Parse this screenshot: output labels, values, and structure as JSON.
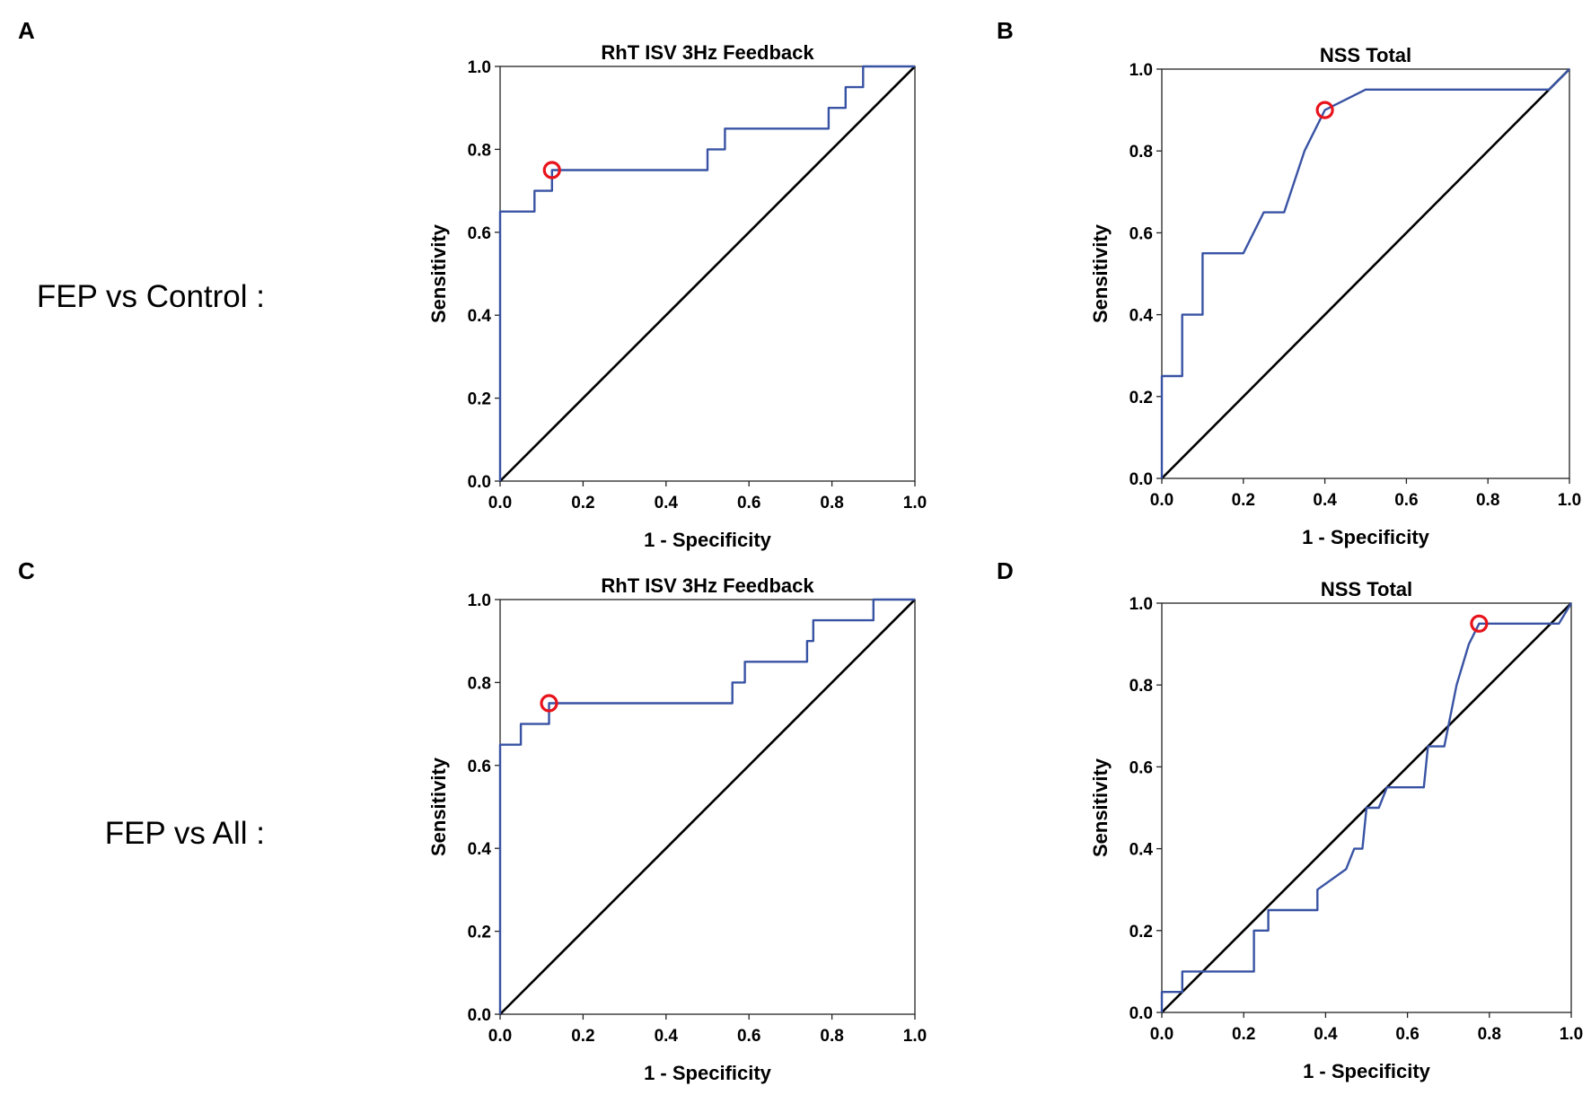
{
  "row_labels": [
    "FEP vs Control :",
    "FEP vs All :"
  ],
  "panel_letters": [
    "A",
    "B",
    "C",
    "D"
  ],
  "colors": {
    "roc": "#3953a4",
    "reference": "#000000",
    "cutoff": "#e8131b"
  },
  "chart_data": [
    {
      "type": "line",
      "panel": "A",
      "title": "RhT ISV 3Hz Feedback",
      "xlabel": "1 - Specificity",
      "ylabel": "Sensitivity",
      "xlim": [
        0,
        1
      ],
      "ylim": [
        0,
        1
      ],
      "xticks": [
        "0.0",
        "0.2",
        "0.4",
        "0.6",
        "0.8",
        "1.0"
      ],
      "yticks": [
        "0.0",
        "0.2",
        "0.4",
        "0.6",
        "0.8",
        "1.0"
      ],
      "series": [
        {
          "name": "ROC curve",
          "points": [
            [
              0,
              0
            ],
            [
              0,
              0.65
            ],
            [
              0.083,
              0.65
            ],
            [
              0.083,
              0.7
            ],
            [
              0.125,
              0.7
            ],
            [
              0.125,
              0.75
            ],
            [
              0.5,
              0.75
            ],
            [
              0.5,
              0.8
            ],
            [
              0.542,
              0.8
            ],
            [
              0.542,
              0.85
            ],
            [
              0.792,
              0.85
            ],
            [
              0.792,
              0.9
            ],
            [
              0.833,
              0.9
            ],
            [
              0.833,
              0.95
            ],
            [
              0.875,
              0.95
            ],
            [
              0.875,
              1.0
            ],
            [
              1.0,
              1.0
            ]
          ]
        },
        {
          "name": "Reference line",
          "points": [
            [
              0,
              0
            ],
            [
              1,
              1
            ]
          ]
        }
      ],
      "cutoff": [
        0.125,
        0.75
      ]
    },
    {
      "type": "line",
      "panel": "B",
      "title": "NSS Total",
      "xlabel": "1 - Specificity",
      "ylabel": "Sensitivity",
      "xlim": [
        0,
        1
      ],
      "ylim": [
        0,
        1
      ],
      "xticks": [
        "0.0",
        "0.2",
        "0.4",
        "0.6",
        "0.8",
        "1.0"
      ],
      "yticks": [
        "0.0",
        "0.2",
        "0.4",
        "0.6",
        "0.8",
        "1.0"
      ],
      "series": [
        {
          "name": "ROC curve",
          "points": [
            [
              0,
              0
            ],
            [
              0,
              0.25
            ],
            [
              0.05,
              0.25
            ],
            [
              0.05,
              0.4
            ],
            [
              0.1,
              0.4
            ],
            [
              0.1,
              0.55
            ],
            [
              0.2,
              0.55
            ],
            [
              0.25,
              0.65
            ],
            [
              0.3,
              0.65
            ],
            [
              0.35,
              0.8
            ],
            [
              0.4,
              0.9
            ],
            [
              0.5,
              0.95
            ],
            [
              0.95,
              0.95
            ],
            [
              1.0,
              1.0
            ]
          ]
        },
        {
          "name": "Reference line",
          "points": [
            [
              0,
              0
            ],
            [
              1,
              1
            ]
          ]
        }
      ],
      "cutoff": [
        0.4,
        0.9
      ]
    },
    {
      "type": "line",
      "panel": "C",
      "title": "RhT ISV 3Hz Feedback",
      "xlabel": "1 - Specificity",
      "ylabel": "Sensitivity",
      "xlim": [
        0,
        1
      ],
      "ylim": [
        0,
        1
      ],
      "xticks": [
        "0.0",
        "0.2",
        "0.4",
        "0.6",
        "0.8",
        "1.0"
      ],
      "yticks": [
        "0.0",
        "0.2",
        "0.4",
        "0.6",
        "0.8",
        "1.0"
      ],
      "series": [
        {
          "name": "ROC curve",
          "points": [
            [
              0,
              0
            ],
            [
              0,
              0.65
            ],
            [
              0.05,
              0.65
            ],
            [
              0.05,
              0.7
            ],
            [
              0.118,
              0.7
            ],
            [
              0.118,
              0.75
            ],
            [
              0.56,
              0.75
            ],
            [
              0.56,
              0.8
            ],
            [
              0.59,
              0.8
            ],
            [
              0.59,
              0.85
            ],
            [
              0.74,
              0.85
            ],
            [
              0.74,
              0.9
            ],
            [
              0.755,
              0.9
            ],
            [
              0.755,
              0.95
            ],
            [
              0.9,
              0.95
            ],
            [
              0.9,
              1.0
            ],
            [
              1.0,
              1.0
            ]
          ]
        },
        {
          "name": "Reference line",
          "points": [
            [
              0,
              0
            ],
            [
              1,
              1
            ]
          ]
        }
      ],
      "cutoff": [
        0.118,
        0.75
      ]
    },
    {
      "type": "line",
      "panel": "D",
      "title": "NSS Total",
      "xlabel": "1 - Specificity",
      "ylabel": "Sensitivity",
      "xlim": [
        0,
        1
      ],
      "ylim": [
        0,
        1
      ],
      "xticks": [
        "0.0",
        "0.2",
        "0.4",
        "0.6",
        "0.8",
        "1.0"
      ],
      "yticks": [
        "0.0",
        "0.2",
        "0.4",
        "0.6",
        "0.8",
        "1.0"
      ],
      "series": [
        {
          "name": "ROC curve",
          "points": [
            [
              0,
              0
            ],
            [
              0,
              0.05
            ],
            [
              0.05,
              0.05
            ],
            [
              0.05,
              0.1
            ],
            [
              0.225,
              0.1
            ],
            [
              0.225,
              0.2
            ],
            [
              0.26,
              0.2
            ],
            [
              0.26,
              0.25
            ],
            [
              0.38,
              0.25
            ],
            [
              0.38,
              0.3
            ],
            [
              0.45,
              0.35
            ],
            [
              0.47,
              0.4
            ],
            [
              0.49,
              0.4
            ],
            [
              0.5,
              0.5
            ],
            [
              0.53,
              0.5
            ],
            [
              0.55,
              0.55
            ],
            [
              0.64,
              0.55
            ],
            [
              0.65,
              0.65
            ],
            [
              0.69,
              0.65
            ],
            [
              0.72,
              0.8
            ],
            [
              0.75,
              0.9
            ],
            [
              0.775,
              0.95
            ],
            [
              0.97,
              0.95
            ],
            [
              1.0,
              1.0
            ]
          ]
        },
        {
          "name": "Reference line",
          "points": [
            [
              0,
              0
            ],
            [
              1,
              1
            ]
          ]
        }
      ],
      "cutoff": [
        0.775,
        0.95
      ]
    }
  ]
}
